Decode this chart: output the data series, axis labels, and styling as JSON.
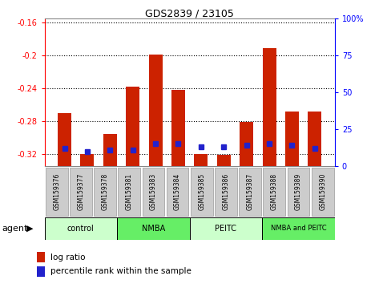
{
  "title": "GDS2839 / 23105",
  "samples": [
    "GSM159376",
    "GSM159377",
    "GSM159378",
    "GSM159381",
    "GSM159383",
    "GSM159384",
    "GSM159385",
    "GSM159386",
    "GSM159387",
    "GSM159388",
    "GSM159389",
    "GSM159390"
  ],
  "log_ratio": [
    -0.27,
    -0.32,
    -0.296,
    -0.238,
    -0.199,
    -0.242,
    -0.32,
    -0.321,
    -0.281,
    -0.191,
    -0.268,
    -0.268
  ],
  "percentile_rank": [
    12,
    10,
    11,
    11,
    15,
    15,
    13,
    13,
    14,
    15,
    14,
    12
  ],
  "bar_color_red": "#cc2200",
  "bar_color_blue": "#2222cc",
  "ylim_left": [
    -0.335,
    -0.155
  ],
  "yticks_left": [
    -0.32,
    -0.28,
    -0.24,
    -0.2,
    -0.16
  ],
  "yticks_right": [
    0,
    25,
    50,
    75,
    100
  ],
  "bar_width": 0.6,
  "group_positions": [
    [
      0,
      3,
      "control",
      "#ccffcc"
    ],
    [
      3,
      6,
      "NMBA",
      "#66ee66"
    ],
    [
      6,
      9,
      "PEITC",
      "#ccffcc"
    ],
    [
      9,
      12,
      "NMBA and PEITC",
      "#66ee66"
    ]
  ],
  "legend_log_ratio": "log ratio",
  "legend_percentile": "percentile rank within the sample"
}
